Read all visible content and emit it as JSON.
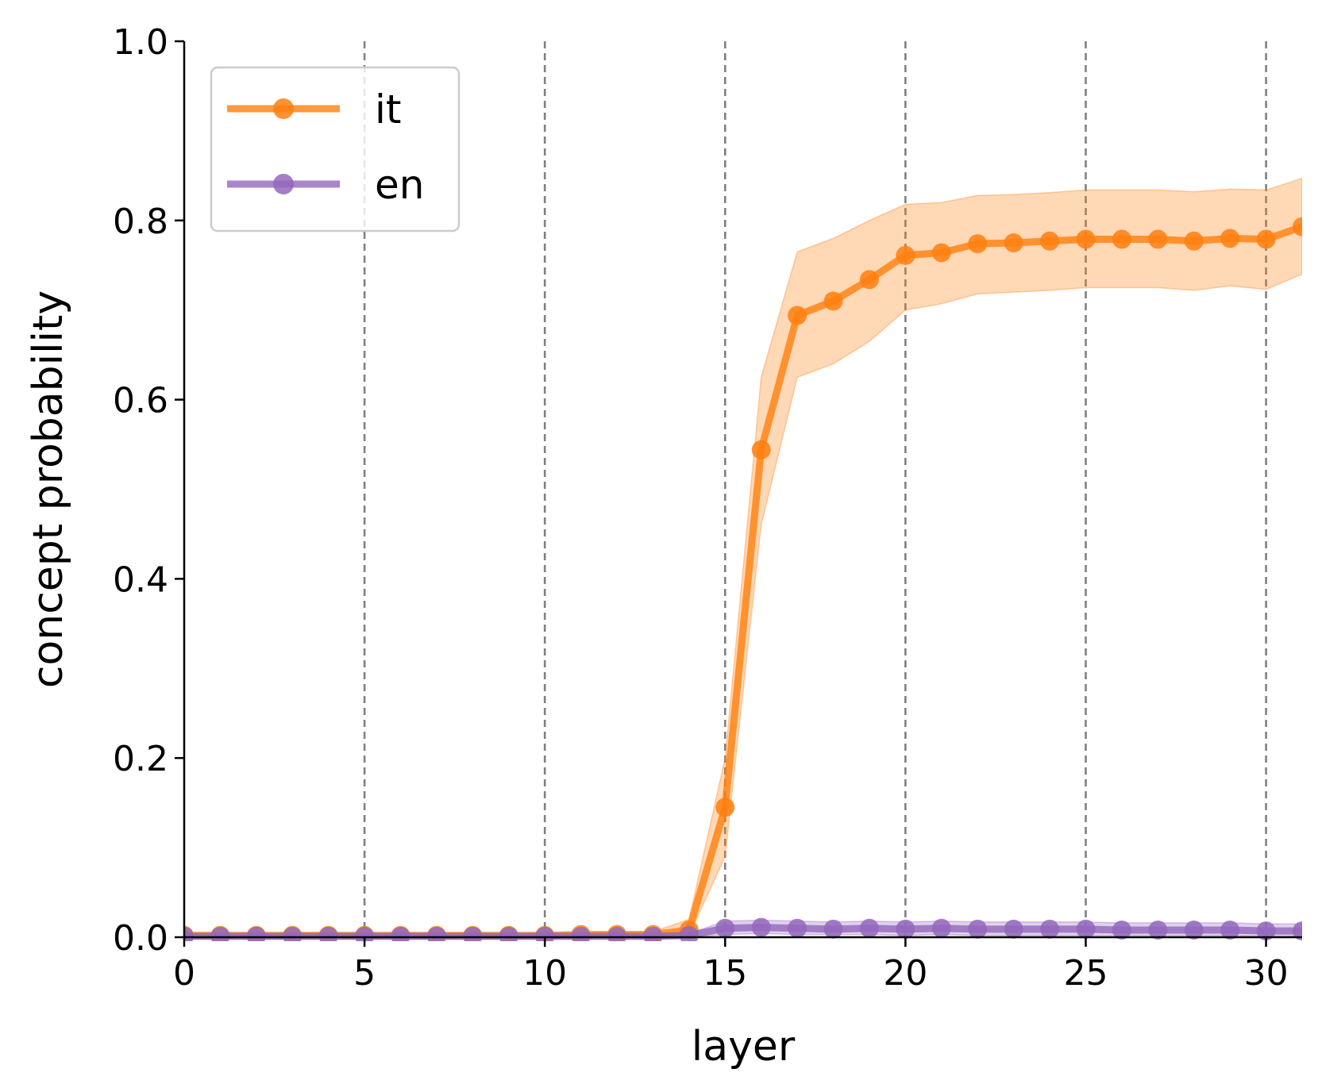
{
  "chart_data": {
    "type": "line",
    "xlabel": "layer",
    "ylabel": "concept probability",
    "xlim": [
      0,
      31
    ],
    "ylim": [
      0,
      1.0
    ],
    "xticks": [
      0,
      5,
      10,
      15,
      20,
      25,
      30
    ],
    "xtick_labels": [
      "0",
      "5",
      "10",
      "15",
      "20",
      "25",
      "30"
    ],
    "yticks": [
      0.0,
      0.2,
      0.4,
      0.6,
      0.8,
      1.0
    ],
    "ytick_labels": [
      "0.0",
      "0.2",
      "0.4",
      "0.6",
      "0.8",
      "1.0"
    ],
    "vlines": [
      5,
      10,
      15,
      20,
      25,
      30
    ],
    "grid": false,
    "legend_position": "top-left",
    "x": [
      0,
      1,
      2,
      3,
      4,
      5,
      6,
      7,
      8,
      9,
      10,
      11,
      12,
      13,
      14,
      15,
      16,
      17,
      18,
      19,
      20,
      21,
      22,
      23,
      24,
      25,
      26,
      27,
      28,
      29,
      30,
      31
    ],
    "series": [
      {
        "name": "it",
        "color": "#ff7f0e",
        "values": [
          0.002,
          0.002,
          0.002,
          0.002,
          0.002,
          0.002,
          0.002,
          0.002,
          0.002,
          0.002,
          0.002,
          0.003,
          0.003,
          0.003,
          0.008,
          0.145,
          0.544,
          0.694,
          0.71,
          0.734,
          0.761,
          0.764,
          0.774,
          0.775,
          0.777,
          0.779,
          0.779,
          0.779,
          0.777,
          0.78,
          0.779,
          0.793
        ],
        "lower": [
          0.001,
          0.001,
          0.001,
          0.001,
          0.001,
          0.001,
          0.001,
          0.001,
          0.001,
          0.001,
          0.001,
          0.001,
          0.001,
          0.001,
          0.002,
          0.09,
          0.46,
          0.625,
          0.64,
          0.665,
          0.7,
          0.707,
          0.718,
          0.72,
          0.722,
          0.725,
          0.725,
          0.725,
          0.722,
          0.727,
          0.723,
          0.74
        ],
        "upper": [
          0.004,
          0.004,
          0.004,
          0.004,
          0.004,
          0.004,
          0.004,
          0.004,
          0.004,
          0.004,
          0.004,
          0.005,
          0.006,
          0.006,
          0.02,
          0.2,
          0.625,
          0.765,
          0.78,
          0.8,
          0.818,
          0.82,
          0.828,
          0.829,
          0.831,
          0.834,
          0.834,
          0.834,
          0.832,
          0.835,
          0.834,
          0.847
        ]
      },
      {
        "name": "en",
        "color": "#9467bd",
        "values": [
          0.001,
          0.001,
          0.001,
          0.001,
          0.001,
          0.001,
          0.001,
          0.001,
          0.001,
          0.001,
          0.001,
          0.001,
          0.001,
          0.001,
          0.002,
          0.01,
          0.011,
          0.01,
          0.009,
          0.01,
          0.009,
          0.01,
          0.009,
          0.009,
          0.009,
          0.009,
          0.008,
          0.008,
          0.008,
          0.008,
          0.007,
          0.007
        ],
        "lower": [
          0,
          0,
          0,
          0,
          0,
          0,
          0,
          0,
          0,
          0,
          0,
          0,
          0,
          0,
          0,
          0.003,
          0.004,
          0.003,
          0.003,
          0.003,
          0.002,
          0.003,
          0.002,
          0.002,
          0.002,
          0.002,
          0.002,
          0.002,
          0.002,
          0.002,
          0.001,
          0.001
        ],
        "upper": [
          0.002,
          0.002,
          0.002,
          0.002,
          0.002,
          0.002,
          0.002,
          0.002,
          0.002,
          0.002,
          0.002,
          0.002,
          0.002,
          0.002,
          0.004,
          0.018,
          0.019,
          0.018,
          0.017,
          0.018,
          0.017,
          0.018,
          0.017,
          0.017,
          0.017,
          0.017,
          0.016,
          0.016,
          0.016,
          0.016,
          0.015,
          0.015
        ]
      }
    ]
  }
}
